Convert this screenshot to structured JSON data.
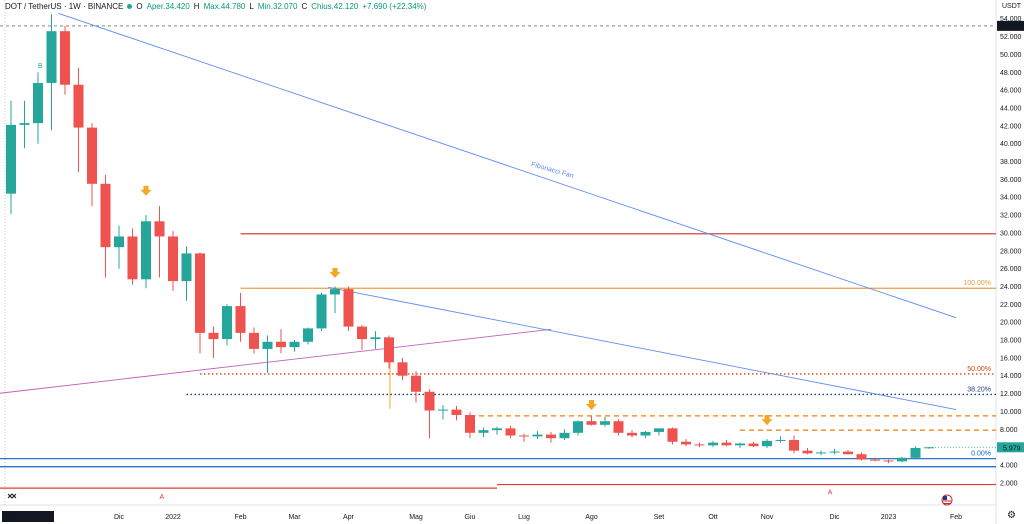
{
  "header": {
    "symbol": "DOT / TetherUS · 1W · BINANCE",
    "open_label": "O",
    "open_text": "Aper.34.420",
    "high_label": "H",
    "high_text": "Max.44.780",
    "low_label": "L",
    "low_text": "Min.32.070",
    "close_label": "C",
    "close_text": "Chius.42.120",
    "change_text": "+7.690 (+22.34%)",
    "currency": "USDT"
  },
  "price_badges": {
    "dashed_high": "53.196",
    "current": "5.979"
  },
  "icons": {
    "settings": "gear-icon",
    "flag": "us-flag-icon",
    "hide": "eye-icon"
  },
  "colors": {
    "up": "#26a69a",
    "down": "#ef5350",
    "fan": "#5b8def",
    "fib_orange": "#e8a045",
    "red_level": "#d32f2f",
    "dotted_blue": "#2962ff",
    "arrow": "#f5a623"
  },
  "chart_data": {
    "type": "candlestick",
    "title": "DOT / TetherUS · 1W · BINANCE",
    "ylabel": "USDT",
    "ylim": [
      0,
      55
    ],
    "y_ticks": [
      2,
      4,
      6,
      8,
      10,
      12,
      14,
      16,
      18,
      20,
      22,
      24,
      26,
      28,
      30,
      32,
      34,
      36,
      38,
      40,
      42,
      44,
      46,
      48,
      50,
      52,
      54
    ],
    "x_ticks": [
      {
        "label": "Dic",
        "index": 8
      },
      {
        "label": "2022",
        "index": 12
      },
      {
        "label": "Feb",
        "index": 17
      },
      {
        "label": "Mar",
        "index": 21
      },
      {
        "label": "Apr",
        "index": 25
      },
      {
        "label": "Mag",
        "index": 30
      },
      {
        "label": "Giu",
        "index": 34
      },
      {
        "label": "Lug",
        "index": 38
      },
      {
        "label": "Ago",
        "index": 43
      },
      {
        "label": "Set",
        "index": 48
      },
      {
        "label": "Ott",
        "index": 52
      },
      {
        "label": "Nov",
        "index": 56
      },
      {
        "label": "Dic",
        "index": 61
      },
      {
        "label": "2023",
        "index": 65
      },
      {
        "label": "Feb",
        "index": 70
      }
    ],
    "x_cursor_label": "lun 11 Ott '21",
    "candles": [
      {
        "o": 34.4,
        "h": 44.8,
        "l": 32.1,
        "c": 42.1
      },
      {
        "o": 42.1,
        "h": 44.8,
        "l": 39.5,
        "c": 42.3
      },
      {
        "o": 42.3,
        "h": 48.0,
        "l": 40.0,
        "c": 46.8
      },
      {
        "o": 46.8,
        "h": 54.5,
        "l": 41.5,
        "c": 52.6
      },
      {
        "o": 52.6,
        "h": 53.2,
        "l": 45.5,
        "c": 46.6
      },
      {
        "o": 46.6,
        "h": 48.5,
        "l": 36.8,
        "c": 41.8
      },
      {
        "o": 41.8,
        "h": 42.3,
        "l": 33.0,
        "c": 35.5
      },
      {
        "o": 35.5,
        "h": 36.5,
        "l": 25.0,
        "c": 28.4
      },
      {
        "o": 28.4,
        "h": 30.8,
        "l": 26.0,
        "c": 29.6
      },
      {
        "o": 29.6,
        "h": 30.5,
        "l": 24.2,
        "c": 24.8
      },
      {
        "o": 24.8,
        "h": 32.0,
        "l": 23.8,
        "c": 31.3
      },
      {
        "o": 31.3,
        "h": 33.0,
        "l": 25.0,
        "c": 29.6
      },
      {
        "o": 29.6,
        "h": 30.2,
        "l": 23.5,
        "c": 24.6
      },
      {
        "o": 24.6,
        "h": 28.5,
        "l": 22.4,
        "c": 27.7
      },
      {
        "o": 27.7,
        "h": 27.8,
        "l": 16.5,
        "c": 18.8
      },
      {
        "o": 18.8,
        "h": 19.5,
        "l": 16.0,
        "c": 18.1
      },
      {
        "o": 18.1,
        "h": 22.0,
        "l": 17.4,
        "c": 21.8
      },
      {
        "o": 21.8,
        "h": 23.3,
        "l": 17.8,
        "c": 18.8
      },
      {
        "o": 18.8,
        "h": 19.4,
        "l": 16.5,
        "c": 17.0
      },
      {
        "o": 17.0,
        "h": 18.5,
        "l": 14.3,
        "c": 17.8
      },
      {
        "o": 17.8,
        "h": 19.2,
        "l": 16.5,
        "c": 17.2
      },
      {
        "o": 17.2,
        "h": 18.0,
        "l": 16.7,
        "c": 17.8
      },
      {
        "o": 17.8,
        "h": 19.4,
        "l": 17.5,
        "c": 19.3
      },
      {
        "o": 19.3,
        "h": 23.3,
        "l": 19.0,
        "c": 23.1
      },
      {
        "o": 23.1,
        "h": 24.0,
        "l": 21.0,
        "c": 23.7
      },
      {
        "o": 23.7,
        "h": 24.0,
        "l": 19.0,
        "c": 19.5
      },
      {
        "o": 19.5,
        "h": 19.7,
        "l": 16.9,
        "c": 18.1
      },
      {
        "o": 18.1,
        "h": 19.0,
        "l": 17.0,
        "c": 18.3
      },
      {
        "o": 18.3,
        "h": 18.5,
        "l": 14.8,
        "c": 15.5
      },
      {
        "o": 15.5,
        "h": 16.0,
        "l": 13.5,
        "c": 14.0
      },
      {
        "o": 14.0,
        "h": 14.5,
        "l": 11.0,
        "c": 12.2
      },
      {
        "o": 12.2,
        "h": 12.5,
        "l": 7.0,
        "c": 10.1
      },
      {
        "o": 10.1,
        "h": 10.7,
        "l": 9.1,
        "c": 10.2
      },
      {
        "o": 10.2,
        "h": 10.6,
        "l": 9.0,
        "c": 9.6
      },
      {
        "o": 9.6,
        "h": 9.9,
        "l": 7.0,
        "c": 7.6
      },
      {
        "o": 7.6,
        "h": 8.2,
        "l": 7.1,
        "c": 7.9
      },
      {
        "o": 7.9,
        "h": 8.3,
        "l": 7.4,
        "c": 8.1
      },
      {
        "o": 8.1,
        "h": 8.4,
        "l": 7.0,
        "c": 7.3
      },
      {
        "o": 7.3,
        "h": 7.5,
        "l": 6.6,
        "c": 7.2
      },
      {
        "o": 7.2,
        "h": 7.8,
        "l": 6.9,
        "c": 7.4
      },
      {
        "o": 7.4,
        "h": 7.7,
        "l": 6.5,
        "c": 7.0
      },
      {
        "o": 7.0,
        "h": 8.0,
        "l": 6.8,
        "c": 7.6
      },
      {
        "o": 7.6,
        "h": 9.0,
        "l": 7.3,
        "c": 8.9
      },
      {
        "o": 8.9,
        "h": 9.5,
        "l": 8.4,
        "c": 8.5
      },
      {
        "o": 8.5,
        "h": 9.4,
        "l": 8.3,
        "c": 8.9
      },
      {
        "o": 8.9,
        "h": 9.1,
        "l": 7.3,
        "c": 7.6
      },
      {
        "o": 7.6,
        "h": 7.9,
        "l": 7.1,
        "c": 7.3
      },
      {
        "o": 7.3,
        "h": 7.8,
        "l": 7.0,
        "c": 7.7
      },
      {
        "o": 7.7,
        "h": 8.0,
        "l": 7.3,
        "c": 8.1
      },
      {
        "o": 8.1,
        "h": 8.2,
        "l": 6.3,
        "c": 6.6
      },
      {
        "o": 6.6,
        "h": 6.9,
        "l": 6.1,
        "c": 6.3
      },
      {
        "o": 6.3,
        "h": 6.5,
        "l": 6.0,
        "c": 6.2
      },
      {
        "o": 6.2,
        "h": 6.7,
        "l": 6.0,
        "c": 6.5
      },
      {
        "o": 6.5,
        "h": 6.8,
        "l": 6.1,
        "c": 6.2
      },
      {
        "o": 6.2,
        "h": 6.5,
        "l": 5.9,
        "c": 6.4
      },
      {
        "o": 6.4,
        "h": 6.6,
        "l": 6.0,
        "c": 6.1
      },
      {
        "o": 6.1,
        "h": 6.9,
        "l": 5.9,
        "c": 6.7
      },
      {
        "o": 6.7,
        "h": 7.2,
        "l": 6.5,
        "c": 6.8
      },
      {
        "o": 6.8,
        "h": 7.3,
        "l": 5.3,
        "c": 5.6
      },
      {
        "o": 5.6,
        "h": 5.9,
        "l": 5.2,
        "c": 5.3
      },
      {
        "o": 5.3,
        "h": 5.6,
        "l": 5.1,
        "c": 5.4
      },
      {
        "o": 5.4,
        "h": 5.8,
        "l": 5.2,
        "c": 5.5
      },
      {
        "o": 5.5,
        "h": 5.7,
        "l": 5.2,
        "c": 5.2
      },
      {
        "o": 5.2,
        "h": 5.4,
        "l": 4.5,
        "c": 4.6
      },
      {
        "o": 4.6,
        "h": 4.8,
        "l": 4.4,
        "c": 4.5
      },
      {
        "o": 4.5,
        "h": 4.6,
        "l": 4.2,
        "c": 4.4
      },
      {
        "o": 4.4,
        "h": 4.9,
        "l": 4.3,
        "c": 4.8
      },
      {
        "o": 4.8,
        "h": 6.1,
        "l": 4.7,
        "c": 5.9
      },
      {
        "o": 5.9,
        "h": 6.0,
        "l": 5.8,
        "c": 5.979
      }
    ],
    "levels": [
      {
        "name": "red-level-30",
        "y": 29.9,
        "from": 17,
        "style": "solid",
        "color": "#d32f2f"
      },
      {
        "name": "fib-100",
        "y": 23.8,
        "from": 17,
        "style": "solid",
        "color": "#e8a045",
        "label": "100.00%"
      },
      {
        "name": "fib-50",
        "y": 14.2,
        "from": 14,
        "style": "dotted",
        "color": "#d84315",
        "label": "50.00%"
      },
      {
        "name": "fib-382",
        "y": 11.9,
        "from": 13,
        "style": "dotted",
        "color": "#1e3a8a",
        "label": "38.20%"
      },
      {
        "name": "orange-dash-95",
        "y": 9.5,
        "from": 34,
        "style": "dashed",
        "color": "#f57c00"
      },
      {
        "name": "orange-dash-79",
        "y": 7.9,
        "from": 54,
        "style": "dashed",
        "color": "#f57c00"
      },
      {
        "name": "fib-0",
        "y": 4.7,
        "from": 0,
        "style": "solid",
        "color": "#1565c0",
        "label": "0.00%"
      },
      {
        "name": "blue-level-38",
        "y": 3.8,
        "from": 0,
        "style": "solid",
        "color": "#1565c0"
      },
      {
        "name": "red-support-left",
        "y": 1.4,
        "from": 0,
        "to": 36,
        "style": "solid",
        "color": "#e53935"
      },
      {
        "name": "red-support-right",
        "y": 1.8,
        "from": 36,
        "style": "solid",
        "color": "#e53935"
      },
      {
        "name": "teal-upper-53",
        "y": 53.196,
        "from": 0,
        "style": "dashed",
        "color": "#9e9e9e"
      }
    ],
    "fan_lines": [
      {
        "name": "fibonacci-fan-upper",
        "x0": 3.5,
        "y0": 54.6,
        "x1": 70,
        "y1": 20.5
      },
      {
        "name": "fibonacci-fan-lower",
        "x0": 23.5,
        "y0": 23.9,
        "x1": 70,
        "y1": 10.2
      }
    ],
    "trend_lines": [
      {
        "name": "magenta-trend-line",
        "x0": -1,
        "y0": 12.0,
        "x1": 40,
        "y1": 19.2,
        "color": "#c060c0"
      }
    ],
    "arrows": [
      {
        "index": 10,
        "y": 34.5
      },
      {
        "index": 24,
        "y": 25.3
      },
      {
        "index": 43,
        "y": 10.5
      },
      {
        "index": 56,
        "y": 8.8
      }
    ],
    "annotations": [
      {
        "text": "Fibonacci Fan",
        "x": 38.5,
        "y": 37.5
      },
      {
        "text": "B",
        "x": 2,
        "y": 48.5
      },
      {
        "text": "A",
        "x": 11,
        "y": 0.2
      },
      {
        "text": "A",
        "x": 60.5,
        "y": 0.7
      }
    ],
    "legend": "none"
  }
}
